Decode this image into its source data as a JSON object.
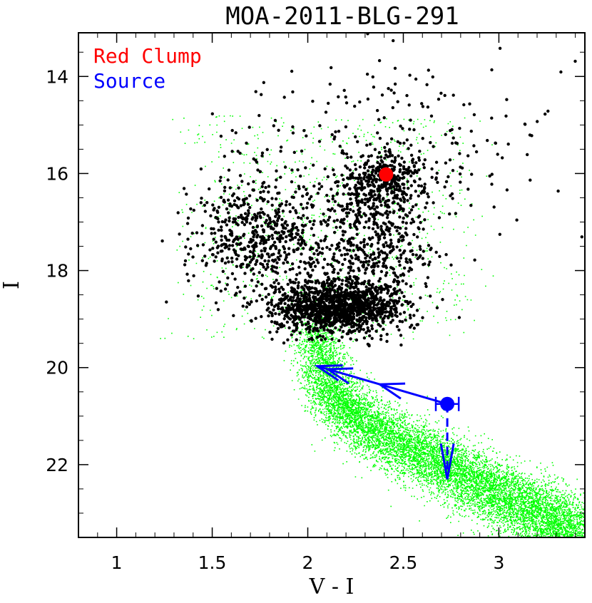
{
  "chart_data": {
    "type": "scatter",
    "title": "MOA-2011-BLG-291",
    "xlabel": "V - I",
    "ylabel": "I",
    "xlim": [
      0.8,
      3.45
    ],
    "ylim": [
      23.5,
      13.1
    ],
    "y_inverted": true,
    "grid": false,
    "legend_placement": "top-left",
    "xticks": [
      {
        "value": 1,
        "label": "1"
      },
      {
        "value": 1.5,
        "label": "1.5"
      },
      {
        "value": 2,
        "label": "2"
      },
      {
        "value": 2.5,
        "label": "2.5"
      },
      {
        "value": 3,
        "label": "3"
      }
    ],
    "yticks": [
      {
        "value": 14,
        "label": "14"
      },
      {
        "value": 16,
        "label": "16"
      },
      {
        "value": 18,
        "label": "18"
      },
      {
        "value": 20,
        "label": "20"
      },
      {
        "value": 22,
        "label": "22"
      }
    ],
    "series": [
      {
        "name": "Red Clump",
        "color": "#ff0000",
        "points": [
          {
            "x": 2.41,
            "y": 16.02
          }
        ]
      },
      {
        "name": "Source",
        "color": "#0000ff",
        "points": [
          {
            "x": 2.73,
            "y": 20.75,
            "xerr": 0.06
          }
        ],
        "upper_limit": {
          "x": 2.73,
          "y_from": 20.75,
          "y_to": 22.3
        },
        "extinction_arrow": {
          "from": {
            "x": 2.73,
            "y": 20.75
          },
          "to": {
            "x": 2.05,
            "y": 19.97
          }
        }
      }
    ],
    "background_populations": [
      {
        "description": "field stars (black)",
        "color": "#000000",
        "approx_count": 3000,
        "regions": [
          {
            "x_center": 2.15,
            "x_spread": 0.28,
            "y_center": 18.75,
            "y_spread": 0.45,
            "weight": 0.45
          },
          {
            "x_center": 2.4,
            "x_spread": 0.2,
            "y_center": 16.2,
            "y_spread": 0.6,
            "weight": 0.15
          },
          {
            "x_center": 1.75,
            "x_spread": 0.3,
            "y_center": 17.3,
            "y_spread": 0.9,
            "weight": 0.2
          },
          {
            "x_center": 2.35,
            "x_spread": 0.25,
            "y_center": 17.6,
            "y_spread": 0.8,
            "weight": 0.12
          },
          {
            "x_center": 2.4,
            "x_spread": 0.7,
            "y_center": 15.5,
            "y_spread": 1.5,
            "weight": 0.08
          }
        ]
      },
      {
        "description": "HST field stars (green)",
        "color": "#00ff00",
        "approx_count": 14000,
        "sequence": [
          {
            "x": 2.03,
            "y": 19.1
          },
          {
            "x": 2.1,
            "y": 20.4
          },
          {
            "x": 2.3,
            "y": 21.2
          },
          {
            "x": 2.6,
            "y": 21.8
          },
          {
            "x": 2.9,
            "y": 22.4
          },
          {
            "x": 3.2,
            "y": 23.0
          },
          {
            "x": 3.45,
            "y": 23.5
          }
        ]
      }
    ]
  }
}
